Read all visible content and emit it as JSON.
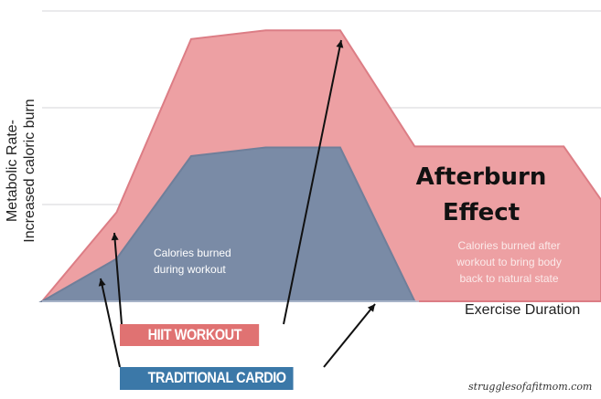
{
  "chart_data": {
    "type": "area",
    "title": "Afterburn Effect",
    "xlabel": "Exercise Duration",
    "ylabel_lines": [
      "Metabolic Rate-",
      "Increased caloric burn"
    ],
    "ylim": [
      0,
      3
    ],
    "xlim": [
      0,
      15
    ],
    "grid": true,
    "series": [
      {
        "name": "HIIT WORKOUT",
        "color": "#eda0a3",
        "stroke": "#dc7d85",
        "x": [
          0,
          2,
          4,
          6,
          8,
          10,
          14,
          15
        ],
        "y": [
          0,
          0.92,
          2.71,
          2.8,
          2.8,
          1.6,
          1.6,
          1.05
        ]
      },
      {
        "name": "TRADITIONAL CARDIO",
        "color": "#7a8ba6",
        "stroke": "#6f7f9a",
        "x": [
          0,
          2,
          4,
          6,
          8,
          10
        ],
        "y": [
          0,
          0.44,
          1.5,
          1.59,
          1.59,
          0
        ]
      }
    ],
    "annotations": {
      "during": [
        "Calories burned",
        "during workout"
      ],
      "after": [
        "Calories burned after",
        "workout to bring body",
        "back to natural state"
      ],
      "title_lines": [
        "Afterburn",
        "Effect"
      ]
    }
  },
  "watermark": "strugglesofafitmom.com"
}
